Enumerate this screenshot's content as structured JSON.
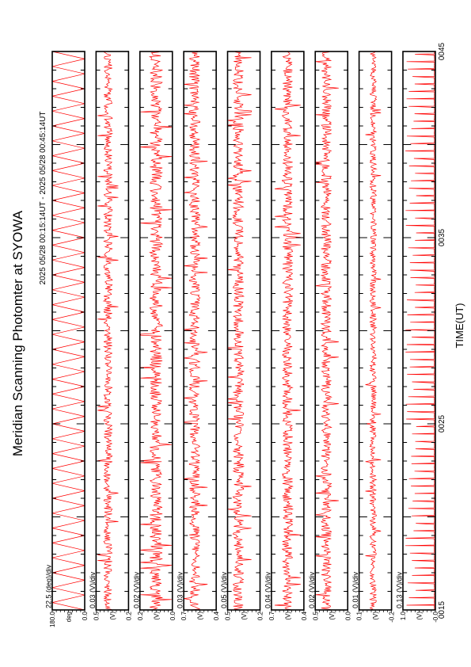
{
  "chart_data": {
    "type": "line",
    "title": "Meridian Scanning Photomter at SYOWA",
    "time_range": "2025 05/28 00:15:14UT - 2025 05/28 00:45:14UT",
    "xlabel": "TIME(UT)",
    "x_ticks": [
      "0015",
      "0025",
      "0035",
      "0045"
    ],
    "xlim": [
      "0015",
      "0045"
    ],
    "line_color": "#ff0000",
    "panels": [
      {
        "scale_label": "22.5 (deg)/div",
        "y_ticks": [
          "180.0",
          "0.0"
        ],
        "unit": "deg",
        "ylim": [
          0.0,
          180.0
        ],
        "pattern": "scan",
        "approx_level": 90.0,
        "approx_amplitude": 90.0
      },
      {
        "scale_label": "0.03 (V)/div",
        "y_ticks": [
          "0.5",
          "0.2"
        ],
        "unit": "(V)",
        "ylim": [
          0.2,
          0.5
        ],
        "pattern": "noise",
        "approx_level": 0.39,
        "approx_amplitude": 0.04
      },
      {
        "scale_label": "0.02 (V)/div",
        "y_ticks": [
          "0.2",
          "0.0"
        ],
        "unit": "(V)",
        "ylim": [
          0.0,
          0.2
        ],
        "pattern": "noise",
        "approx_level": 0.1,
        "approx_amplitude": 0.04
      },
      {
        "scale_label": "0.03 (V)/div",
        "y_ticks": [
          "0.7",
          "0.4"
        ],
        "unit": "(V)",
        "ylim": [
          0.4,
          0.7
        ],
        "pattern": "noise",
        "approx_level": 0.6,
        "approx_amplitude": 0.05
      },
      {
        "scale_label": "0.05 (V)/div",
        "y_ticks": [
          "0.5",
          "0.2"
        ],
        "unit": "(V)",
        "ylim": [
          0.2,
          0.5
        ],
        "pattern": "noise",
        "approx_level": 0.4,
        "approx_amplitude": 0.05
      },
      {
        "scale_label": "0.04 (V)/div",
        "y_ticks": [
          "0.7",
          "0.4"
        ],
        "unit": "(V)",
        "ylim": [
          0.4,
          0.7
        ],
        "pattern": "noise",
        "approx_level": 0.55,
        "approx_amplitude": 0.05
      },
      {
        "scale_label": "0.02 (V)/div",
        "y_ticks": [
          "0.5",
          "0.0"
        ],
        "unit": "(V)",
        "ylim": [
          0.0,
          0.5
        ],
        "pattern": "noise",
        "approx_level": 0.33,
        "approx_amplitude": 0.08
      },
      {
        "scale_label": "0.01 (V)/div",
        "y_ticks": [
          "0.1",
          "-0.2"
        ],
        "unit": "(V)",
        "ylim": [
          -0.2,
          0.1
        ],
        "pattern": "noise",
        "approx_level": -0.03,
        "approx_amplitude": 0.03
      },
      {
        "scale_label": "0.13 (V)/div",
        "y_ticks": [
          "1.0",
          "-0.0"
        ],
        "unit": "(V)",
        "ylim": [
          0.0,
          1.0
        ],
        "pattern": "spikes",
        "approx_level": 0.03,
        "approx_amplitude": 0.9
      }
    ]
  }
}
